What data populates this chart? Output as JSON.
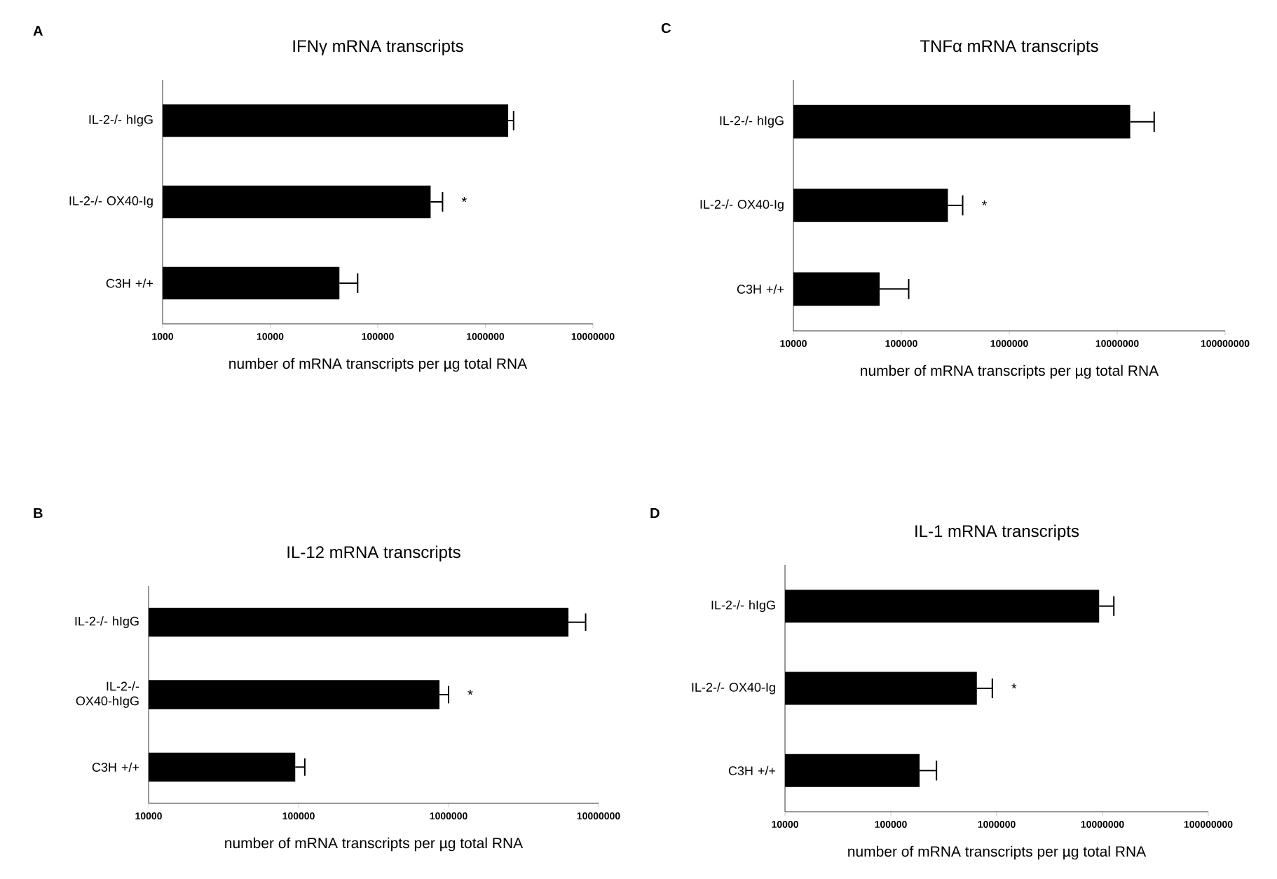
{
  "chart_data": [
    {
      "type": "bar",
      "orientation": "horizontal",
      "log": "x",
      "title": "IFNγ mRNA transcripts",
      "xlabel": "number of mRNA transcripts per µg total RNA",
      "categories": [
        "IL-2-/- hIgG",
        "IL-2-/- OX40-Ig",
        "C3H +/+"
      ],
      "values": [
        1630000,
        310000,
        44000
      ],
      "errors": [
        [
          1630000,
          1830000
        ],
        [
          310000,
          400000
        ],
        [
          44000,
          65000
        ]
      ],
      "color": "#000000",
      "xlim": [
        1000,
        10000000
      ],
      "xticks": [
        1000,
        10000,
        100000,
        1000000,
        10000000
      ],
      "annotations": [
        "A",
        "*"
      ]
    },
    {
      "type": "bar",
      "orientation": "horizontal",
      "log": "x",
      "title": "TNFα mRNA transcripts",
      "xlabel": "number of mRNA transcripts per µg total RNA",
      "categories": [
        "IL-2-/- hIgG",
        "IL-2-/- OX40-Ig",
        "C3H +/+"
      ],
      "values": [
        13200000,
        270000,
        63000
      ],
      "errors": [
        [
          13200000,
          22000000
        ],
        [
          270000,
          370000
        ],
        [
          63000,
          117000
        ]
      ],
      "color": "#000000",
      "xlim": [
        10000,
        100000000
      ],
      "xticks": [
        10000,
        100000,
        1000000,
        10000000,
        100000000
      ],
      "annotations": [
        "C",
        "*"
      ]
    },
    {
      "type": "bar",
      "orientation": "horizontal",
      "log": "x",
      "title": "IL-12 mRNA transcripts",
      "xlabel": "number of mRNA transcripts per µg total RNA",
      "categories": [
        "IL-2-/- hIgG",
        "IL-2-/- OX40-hIgG",
        "C3H +/+"
      ],
      "values": [
        6300000,
        870000,
        95000
      ],
      "errors": [
        [
          6300000,
          8200000
        ],
        [
          870000,
          1000000
        ],
        [
          95000,
          110000
        ]
      ],
      "color": "#000000",
      "xlim": [
        10000,
        10000000
      ],
      "xticks": [
        10000,
        100000,
        1000000,
        10000000
      ],
      "annotations": [
        "B",
        "*"
      ]
    },
    {
      "type": "bar",
      "orientation": "horizontal",
      "log": "x",
      "title": "IL-1 mRNA transcripts",
      "xlabel": "number of mRNA transcripts per µg total RNA",
      "categories": [
        "IL-2-/- hIgG",
        "IL-2-/- OX40-Ig",
        "C3H +/+"
      ],
      "values": [
        9300000,
        650000,
        187000
      ],
      "errors": [
        [
          9300000,
          12800000
        ],
        [
          650000,
          910000
        ],
        [
          187000,
          270000
        ]
      ],
      "color": "#000000",
      "xlim": [
        10000,
        100000000
      ],
      "xticks": [
        10000,
        100000,
        1000000,
        10000000,
        100000000
      ],
      "annotations": [
        "D",
        "*"
      ]
    }
  ]
}
